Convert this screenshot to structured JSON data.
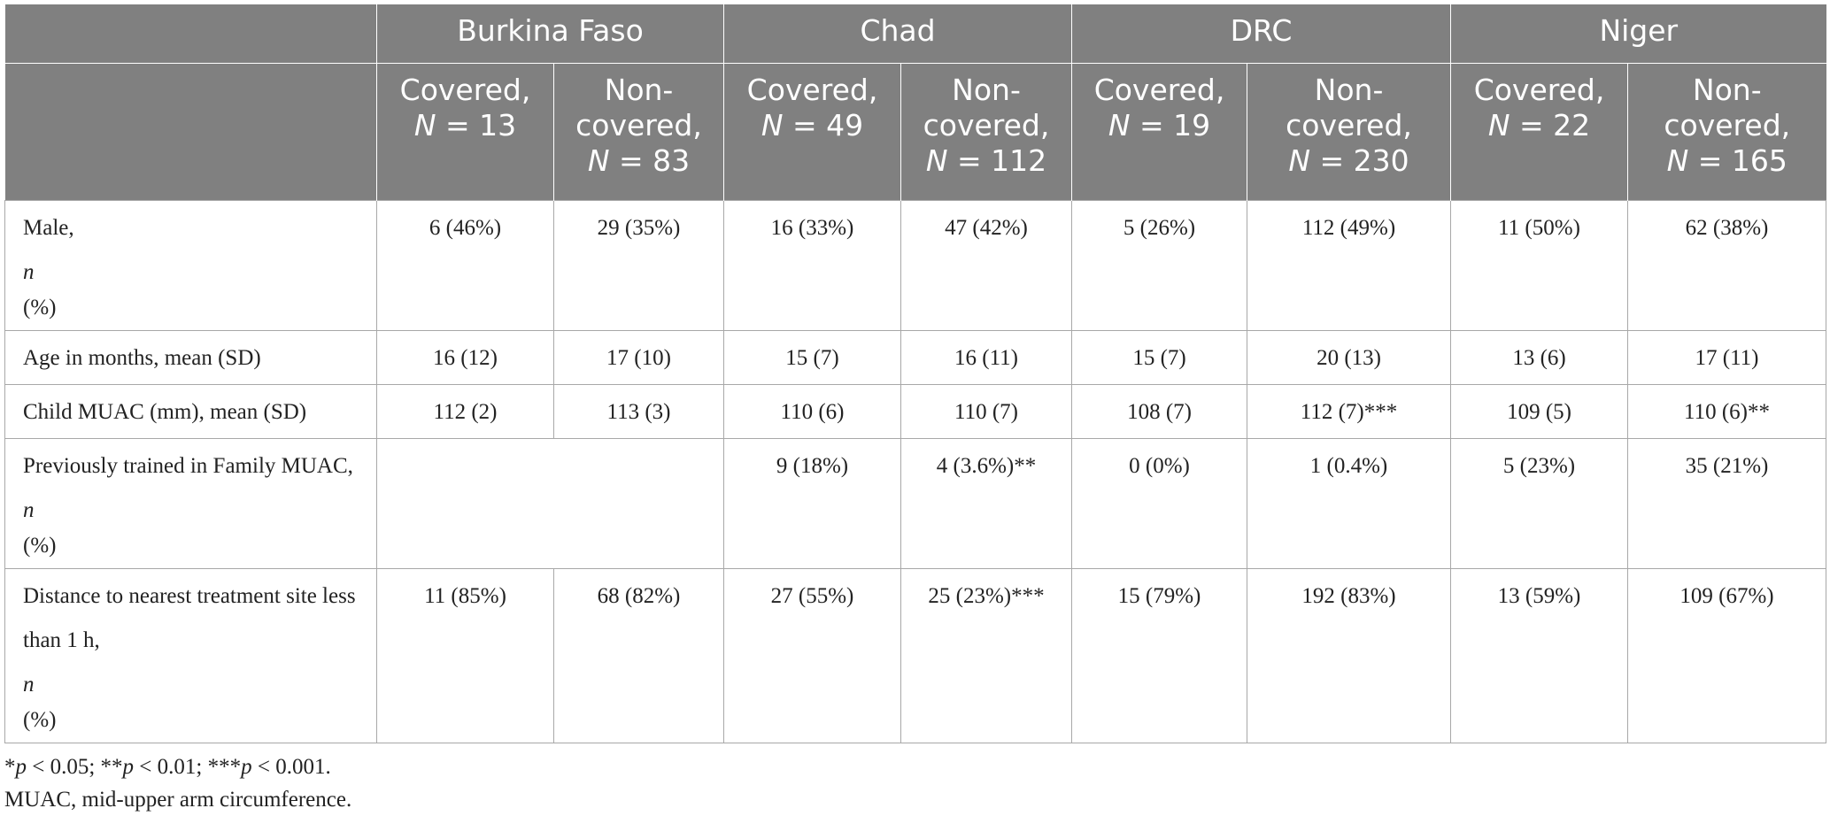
{
  "countries": [
    "Burkina Faso",
    "Chad",
    "DRC",
    "Niger"
  ],
  "columns": [
    {
      "label": "Covered,",
      "n_label": "N",
      "n": "= 13"
    },
    {
      "label": "Non-covered,",
      "n_label": "N",
      "n": "= 83"
    },
    {
      "label": "Covered,",
      "n_label": "N",
      "n": "= 49"
    },
    {
      "label": "Non-covered,",
      "n_label": "N",
      "n": "= 112"
    },
    {
      "label": "Covered,",
      "n_label": "N",
      "n": "= 19"
    },
    {
      "label": "Non-covered,",
      "n_label": "N",
      "n": "= 230"
    },
    {
      "label": "Covered,",
      "n_label": "N",
      "n": "= 22"
    },
    {
      "label": "Non-covered,",
      "n_label": "N",
      "n": "= 165"
    }
  ],
  "rows": [
    {
      "label_a": "Male, ",
      "label_n": "n",
      "label_b": " (%)",
      "cells": [
        "6 (46%)",
        "29 (35%)",
        "16 (33%)",
        "47 (42%)",
        "5 (26%)",
        "112 (49%)",
        "11 (50%)",
        "62 (38%)"
      ]
    },
    {
      "label_a": "Age in months, mean (SD)",
      "label_n": "",
      "label_b": "",
      "cells": [
        "16 (12)",
        "17 (10)",
        "15 (7)",
        "16 (11)",
        "15 (7)",
        "20 (13)",
        "13 (6)",
        "17 (11)"
      ]
    },
    {
      "label_a": "Child MUAC (mm), mean (SD)",
      "label_n": "",
      "label_b": "",
      "cells": [
        "112 (2)",
        "113 (3)",
        "110 (6)",
        "110 (7)",
        "108 (7)",
        "112 (7)***",
        "109 (5)",
        "110 (6)**"
      ]
    },
    {
      "label_a": "Previously trained in Family MUAC, ",
      "label_n": "n",
      "label_b": " (%)",
      "cells": [
        "",
        "",
        "9 (18%)",
        "4 (3.6%)**",
        "0 (0%)",
        "1 (0.4%)",
        "5 (23%)",
        "35 (21%)"
      ]
    },
    {
      "label_a": "Distance to nearest treatment site less than 1 h, ",
      "label_n": "n",
      "label_b": " (%)",
      "cells": [
        "11 (85%)",
        "68 (82%)",
        "27 (55%)",
        "25 (23%)***",
        "15 (79%)",
        "192 (83%)",
        "13 (59%)",
        "109 (67%)"
      ]
    }
  ],
  "footnotes": {
    "sig": [
      {
        "pre": "*",
        "p": "p",
        "post": " < 0.05; **"
      },
      {
        "pre": "",
        "p": "p",
        "post": " < 0.01; ***"
      },
      {
        "pre": "",
        "p": "p",
        "post": " < 0.001."
      }
    ],
    "abbrev": "MUAC, mid-upper arm circumference."
  },
  "colors": {
    "header_bg": "#808080",
    "header_text": "#ffffff",
    "grid": "#a8a8a8"
  }
}
